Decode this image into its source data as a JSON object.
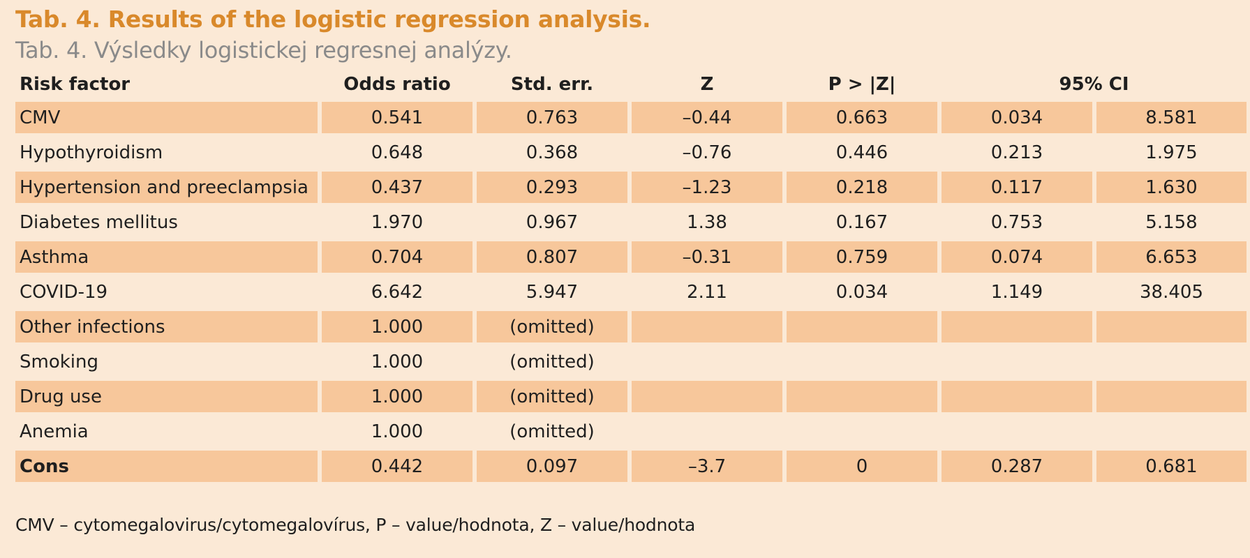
{
  "caption": {
    "title_en": "Tab. 4. Results of the logistic regression analysis.",
    "title_sk": "Tab. 4. Výsledky logistickej regresnej analýzy."
  },
  "colors": {
    "background": "#fbe9d6",
    "row_shade": "#f7c79b",
    "title_accent": "#d9892b",
    "subtitle_gray": "#8a8a8a"
  },
  "table": {
    "headers": [
      "Risk factor",
      "Odds ratio",
      "Std. err.",
      "Z",
      "P > |Z|",
      "95% CI"
    ],
    "rows": [
      {
        "factor": "CMV",
        "odds": "0.541",
        "se": "0.763",
        "z": "–0.44",
        "p": "0.663",
        "ci_low": "0.034",
        "ci_high": "8.581"
      },
      {
        "factor": "Hypothyroidism",
        "odds": "0.648",
        "se": "0.368",
        "z": "–0.76",
        "p": "0.446",
        "ci_low": "0.213",
        "ci_high": "1.975"
      },
      {
        "factor": "Hypertension and preeclampsia",
        "odds": "0.437",
        "se": "0.293",
        "z": "–1.23",
        "p": "0.218",
        "ci_low": "0.117",
        "ci_high": "1.630"
      },
      {
        "factor": "Diabetes mellitus",
        "odds": "1.970",
        "se": "0.967",
        "z": "1.38",
        "p": "0.167",
        "ci_low": "0.753",
        "ci_high": "5.158"
      },
      {
        "factor": "Asthma",
        "odds": "0.704",
        "se": "0.807",
        "z": "–0.31",
        "p": "0.759",
        "ci_low": "0.074",
        "ci_high": "6.653"
      },
      {
        "factor": "COVID-19",
        "odds": "6.642",
        "se": "5.947",
        "z": "2.11",
        "p": "0.034",
        "ci_low": "1.149",
        "ci_high": "38.405"
      },
      {
        "factor": "Other infections",
        "odds": "1.000",
        "se": "(omitted)",
        "z": "",
        "p": "",
        "ci_low": "",
        "ci_high": ""
      },
      {
        "factor": "Smoking",
        "odds": "1.000",
        "se": "(omitted)",
        "z": "",
        "p": "",
        "ci_low": "",
        "ci_high": ""
      },
      {
        "factor": "Drug use",
        "odds": "1.000",
        "se": "(omitted)",
        "z": "",
        "p": "",
        "ci_low": "",
        "ci_high": ""
      },
      {
        "factor": "Anemia",
        "odds": "1.000",
        "se": "(omitted)",
        "z": "",
        "p": "",
        "ci_low": "",
        "ci_high": ""
      },
      {
        "factor": "Cons",
        "odds": "0.442",
        "se": "0.097",
        "z": "–3.7",
        "p": "0",
        "ci_low": "0.287",
        "ci_high": "0.681"
      }
    ]
  },
  "footnote": "CMV – cytomegalovirus/cytomegalovírus, P – value/hodnota, Z – value/hodnota"
}
